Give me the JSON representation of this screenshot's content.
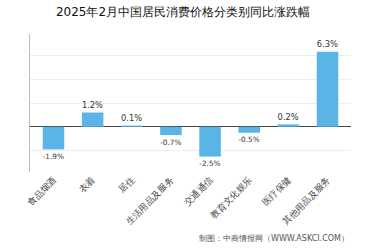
{
  "chart_data": {
    "type": "bar",
    "title": "2025年2月中国居民消费价格分类别同比涨跌幅",
    "categories": [
      "食品烟酒",
      "衣着",
      "居住",
      "生活用品及服务",
      "交通通信",
      "教育文化娱乐",
      "医疗保健",
      "其他用品及服务"
    ],
    "values": [
      -1.9,
      1.2,
      0.1,
      -0.7,
      -2.5,
      -0.5,
      0.2,
      6.3
    ],
    "value_labels": [
      "-1.9%",
      "1.2%",
      "0.1%",
      "-0.7%",
      "-2.5%",
      "-0.5%",
      "0.2%",
      "6.3%"
    ],
    "data_labels": true,
    "color": "#5ab4e5",
    "ylim": [
      -3.8,
      7.8
    ],
    "yticks": [
      -2,
      0,
      2,
      4,
      6
    ],
    "grid": true,
    "tick_labels": "x",
    "annotations": [
      "制图：中商情报网（WWW.ASKCI.COM）"
    ]
  }
}
